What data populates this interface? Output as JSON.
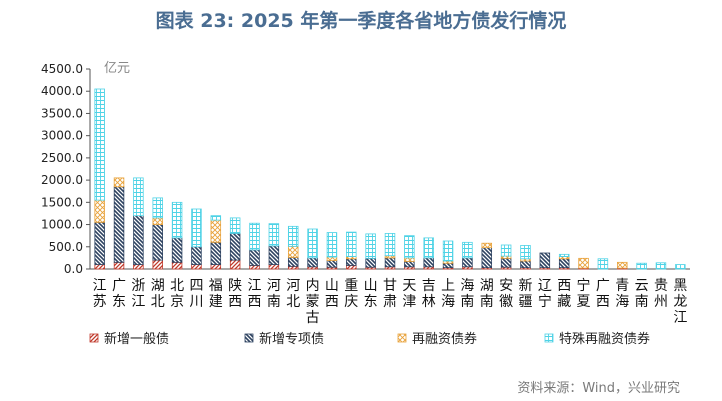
{
  "title": "图表 23:  2025 年第一季度各省地方债发行情况",
  "source": "资料来源：Wind，兴业研究",
  "chart_data": {
    "type": "bar",
    "stacked": true,
    "unit": "亿元",
    "ylim": [
      0,
      4500
    ],
    "yticks": [
      "0.0",
      "500.0",
      "1000.0",
      "1500.0",
      "2000.0",
      "2500.0",
      "3000.0",
      "3500.0",
      "4000.0",
      "4500.0"
    ],
    "grid": false,
    "legend_position": "bottom",
    "categories": [
      "江苏",
      "广东",
      "浙江",
      "湖北",
      "北京",
      "四川",
      "福建",
      "陕西",
      "江西",
      "河南",
      "河北",
      "内蒙古",
      "山西",
      "重庆",
      "山东",
      "甘肃",
      "天津",
      "吉林",
      "上海",
      "海南",
      "湖南",
      "安徽",
      "新疆",
      "辽宁",
      "西藏",
      "宁夏",
      "广西",
      "青海",
      "云南",
      "贵州",
      "黑龙江"
    ],
    "series": [
      {
        "name": "新增一般债",
        "color": "#c0392b",
        "pattern": "red-diagonal",
        "values": [
          100,
          150,
          100,
          200,
          150,
          100,
          100,
          200,
          80,
          100,
          60,
          50,
          40,
          80,
          40,
          50,
          50,
          50,
          30,
          50,
          30,
          40,
          30,
          30,
          30,
          20,
          0,
          20,
          0,
          0,
          0
        ]
      },
      {
        "name": "新增专项债",
        "color": "#2e4361",
        "pattern": "navy-hatch",
        "values": [
          950,
          1700,
          1100,
          800,
          550,
          400,
          500,
          600,
          350,
          420,
          200,
          200,
          150,
          150,
          200,
          200,
          120,
          200,
          100,
          200,
          450,
          200,
          150,
          330,
          200,
          0,
          0,
          0,
          0,
          0,
          0
        ]
      },
      {
        "name": "再融资债券",
        "color": "#e8a23a",
        "pattern": "orange-cross",
        "values": [
          500,
          200,
          0,
          150,
          0,
          0,
          500,
          0,
          0,
          0,
          250,
          0,
          80,
          50,
          0,
          50,
          80,
          0,
          50,
          0,
          100,
          50,
          50,
          0,
          50,
          220,
          0,
          130,
          0,
          0,
          0
        ]
      },
      {
        "name": "特殊再融资债券",
        "color": "#4fd3e6",
        "pattern": "cyan-grid",
        "values": [
          2500,
          0,
          850,
          450,
          800,
          850,
          100,
          350,
          600,
          500,
          450,
          650,
          550,
          550,
          550,
          500,
          500,
          450,
          450,
          350,
          0,
          250,
          300,
          0,
          50,
          0,
          230,
          0,
          130,
          140,
          100
        ]
      }
    ]
  }
}
